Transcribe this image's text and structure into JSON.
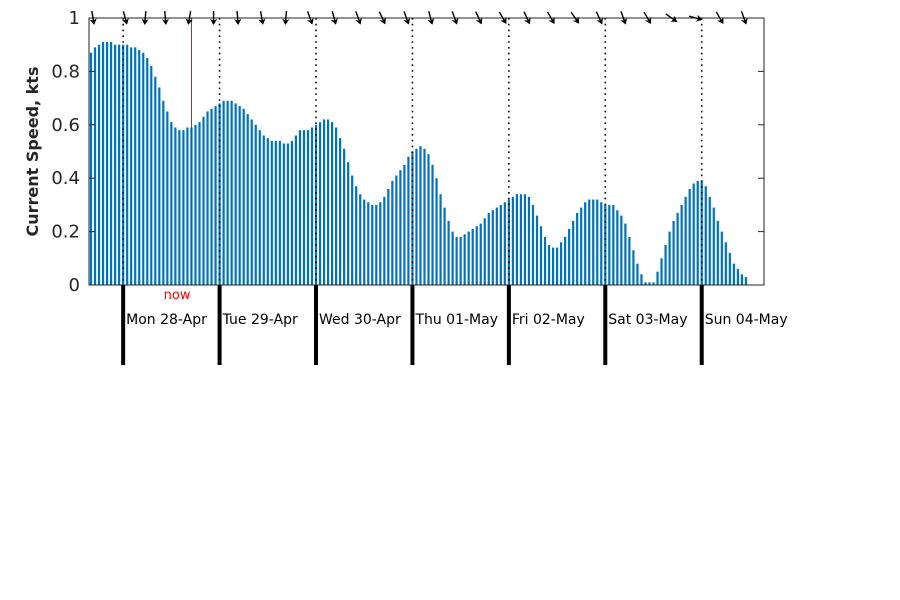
{
  "chart_data": {
    "type": "bar",
    "ylabel": "Current Speed, kts",
    "ylim": [
      0,
      1
    ],
    "yticks": [
      0,
      0.2,
      0.4,
      0.6,
      0.8,
      1
    ],
    "ytick_labels": [
      "0",
      "0.2",
      "0.4",
      "0.6",
      "0.8",
      "1"
    ],
    "xlim_hours": [
      -8.5,
      159.5
    ],
    "hour_step": 1,
    "series": [
      {
        "color": "#0072bd",
        "values": [
          0.87,
          0.89,
          0.9,
          0.91,
          0.91,
          0.91,
          0.9,
          0.9,
          0.9,
          0.9,
          0.89,
          0.89,
          0.88,
          0.87,
          0.85,
          0.82,
          0.78,
          0.74,
          0.69,
          0.65,
          0.61,
          0.59,
          0.58,
          0.58,
          0.59,
          0.59,
          0.6,
          0.61,
          0.63,
          0.65,
          0.66,
          0.67,
          0.68,
          0.69,
          0.69,
          0.69,
          0.68,
          0.67,
          0.66,
          0.64,
          0.62,
          0.6,
          0.58,
          0.56,
          0.55,
          0.54,
          0.54,
          0.54,
          0.53,
          0.53,
          0.54,
          0.56,
          0.58,
          0.58,
          0.58,
          0.59,
          0.6,
          0.61,
          0.62,
          0.62,
          0.61,
          0.59,
          0.55,
          0.51,
          0.46,
          0.41,
          0.37,
          0.34,
          0.32,
          0.31,
          0.3,
          0.3,
          0.31,
          0.33,
          0.36,
          0.39,
          0.41,
          0.43,
          0.45,
          0.48,
          0.5,
          0.51,
          0.52,
          0.51,
          0.49,
          0.45,
          0.4,
          0.34,
          0.29,
          0.24,
          0.2,
          0.18,
          0.18,
          0.19,
          0.2,
          0.21,
          0.22,
          0.23,
          0.25,
          0.27,
          0.28,
          0.29,
          0.3,
          0.31,
          0.32,
          0.33,
          0.34,
          0.34,
          0.34,
          0.33,
          0.3,
          0.26,
          0.22,
          0.18,
          0.15,
          0.14,
          0.14,
          0.16,
          0.18,
          0.21,
          0.24,
          0.27,
          0.29,
          0.31,
          0.32,
          0.32,
          0.32,
          0.31,
          0.3,
          0.3,
          0.3,
          0.28,
          0.26,
          0.23,
          0.18,
          0.13,
          0.08,
          0.04,
          0.01,
          0.01,
          0.01,
          0.05,
          0.1,
          0.15,
          0.2,
          0.24,
          0.27,
          0.3,
          0.33,
          0.36,
          0.38,
          0.39,
          0.39,
          0.37,
          0.33,
          0.29,
          0.24,
          0.2,
          0.16,
          0.12,
          0.08,
          0.06,
          0.04,
          0.03
        ]
      }
    ],
    "now_hour": 17,
    "now_label": "now",
    "now_color": "#ff0000",
    "grid_hours": [
      0,
      24,
      48,
      72,
      96,
      120,
      144
    ],
    "day_labels": [
      "Mon 28-Apr",
      "Tue 29-Apr",
      "Wed 30-Apr",
      "Thu 01-May",
      "Fri 02-May",
      "Sat 03-May",
      "Sun 04-May"
    ],
    "direction_arrows": [
      {
        "hour": -7.5,
        "bearing_deg": 170
      },
      {
        "hour": 0.5,
        "bearing_deg": 165
      },
      {
        "hour": 5.5,
        "bearing_deg": 185
      },
      {
        "hour": 10.5,
        "bearing_deg": 175
      },
      {
        "hour": 16.5,
        "bearing_deg": 190
      },
      {
        "hour": 22.5,
        "bearing_deg": 180
      },
      {
        "hour": 28.5,
        "bearing_deg": 175
      },
      {
        "hour": 34.5,
        "bearing_deg": 170
      },
      {
        "hour": 40.5,
        "bearing_deg": 185
      },
      {
        "hour": 46.5,
        "bearing_deg": 160
      },
      {
        "hour": 52.5,
        "bearing_deg": 165
      },
      {
        "hour": 58.5,
        "bearing_deg": 160
      },
      {
        "hour": 64.5,
        "bearing_deg": 155
      },
      {
        "hour": 70.5,
        "bearing_deg": 160
      },
      {
        "hour": 76.5,
        "bearing_deg": 165
      },
      {
        "hour": 82.5,
        "bearing_deg": 160
      },
      {
        "hour": 88.5,
        "bearing_deg": 155
      },
      {
        "hour": 94.5,
        "bearing_deg": 150
      },
      {
        "hour": 100.5,
        "bearing_deg": 155
      },
      {
        "hour": 106.5,
        "bearing_deg": 150
      },
      {
        "hour": 112.5,
        "bearing_deg": 145
      },
      {
        "hour": 118.5,
        "bearing_deg": 155
      },
      {
        "hour": 124.5,
        "bearing_deg": 160
      },
      {
        "hour": 130.5,
        "bearing_deg": 150
      },
      {
        "hour": 136.5,
        "bearing_deg": 125
      },
      {
        "hour": 142.5,
        "bearing_deg": 105
      },
      {
        "hour": 148.5,
        "bearing_deg": 150
      },
      {
        "hour": 154.5,
        "bearing_deg": 160
      }
    ],
    "grid": "vertical-dotted-at-midnight",
    "legend": "none"
  }
}
